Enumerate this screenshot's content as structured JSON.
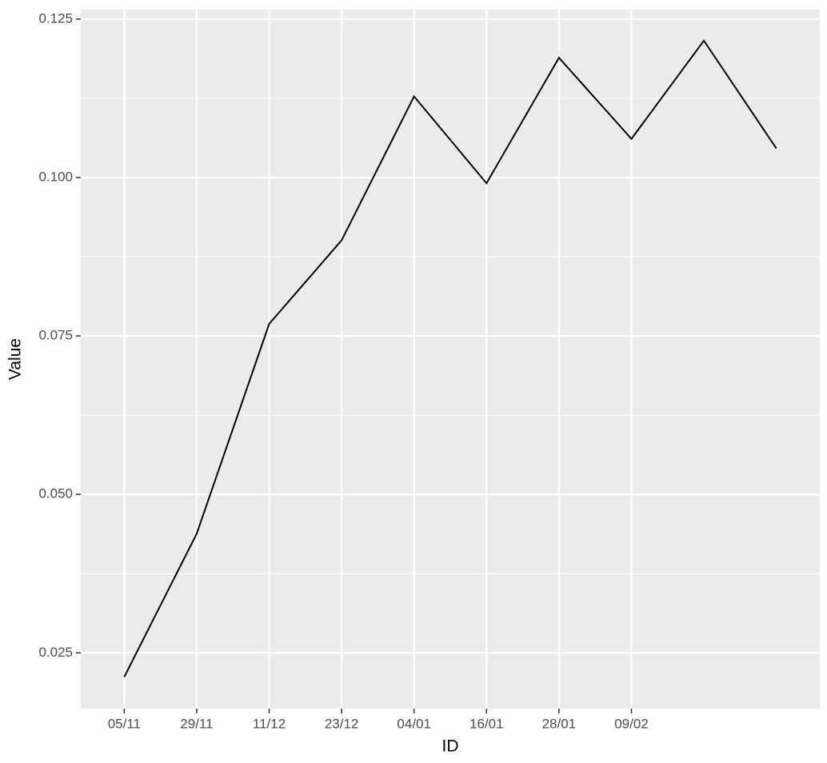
{
  "chart_data": {
    "type": "line",
    "x_label": "ID",
    "y_label": "Value",
    "categories": [
      "05/11",
      "29/11",
      "11/12",
      "23/12",
      "04/01",
      "16/01",
      "28/01",
      "09/02",
      null,
      null
    ],
    "series": [
      {
        "color": "#000000",
        "values": [
          0.0212,
          0.0438,
          0.0769,
          0.0901,
          0.1128,
          0.0991,
          0.1189,
          0.1061,
          0.1216,
          0.1046
        ]
      }
    ],
    "ylim": [
      0.0162,
      0.1265
    ],
    "yticks": [
      0.025,
      {
        "value": 0.05,
        "label": "0.050"
      },
      0.075,
      {
        "value": 0.1,
        "label": "0.100"
      },
      0.125
    ],
    "grid": true
  }
}
